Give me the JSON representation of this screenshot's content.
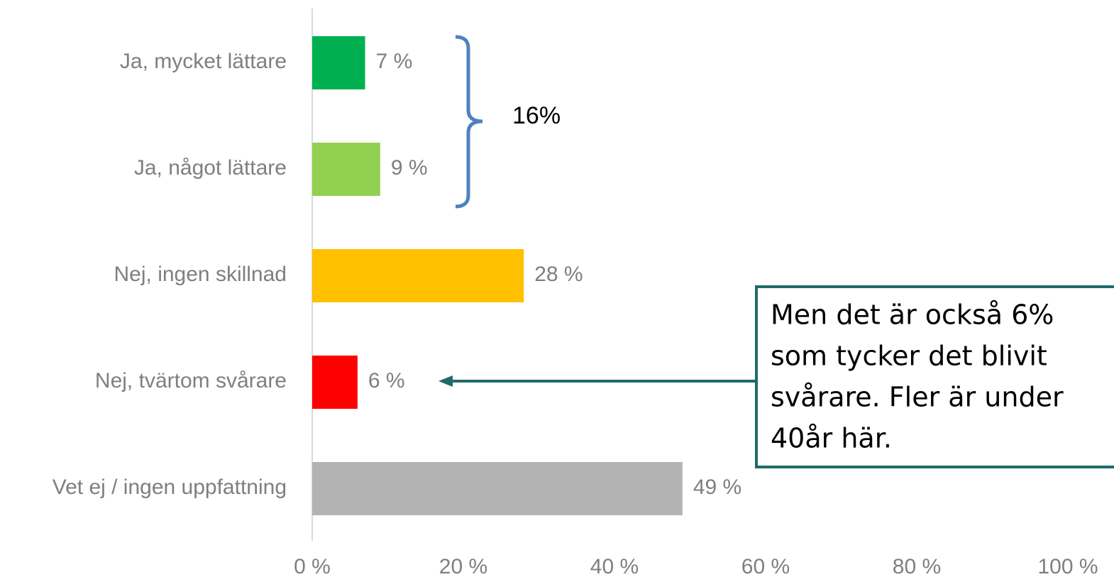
{
  "chart_data": {
    "type": "bar",
    "orientation": "horizontal",
    "categories": [
      "Ja, mycket lättare",
      "Ja, något lättare",
      "Nej, ingen skillnad",
      "Nej, tvärtom svårare",
      "Vet ej / ingen uppfattning"
    ],
    "values": [
      7,
      9,
      28,
      6,
      49
    ],
    "value_labels": [
      "7 %",
      "9 %",
      "28 %",
      "6 %",
      "49 %"
    ],
    "colors": [
      "#00b050",
      "#92d050",
      "#ffc000",
      "#ff0000",
      "#b3b3b3"
    ],
    "xlim": [
      0,
      100
    ],
    "xticks": [
      {
        "value": 0,
        "label": "0 %"
      },
      {
        "value": 20,
        "label": "20 %"
      },
      {
        "value": 40,
        "label": "40 %"
      },
      {
        "value": 60,
        "label": "60 %"
      },
      {
        "value": 80,
        "label": "80 %"
      },
      {
        "value": 100,
        "label": "100 %"
      }
    ],
    "annotations": {
      "brace_label": "16%",
      "callout": [
        "Men det är också 6%",
        "som tycker det blivit",
        "svårare. Fler är under",
        "40år här."
      ]
    }
  }
}
